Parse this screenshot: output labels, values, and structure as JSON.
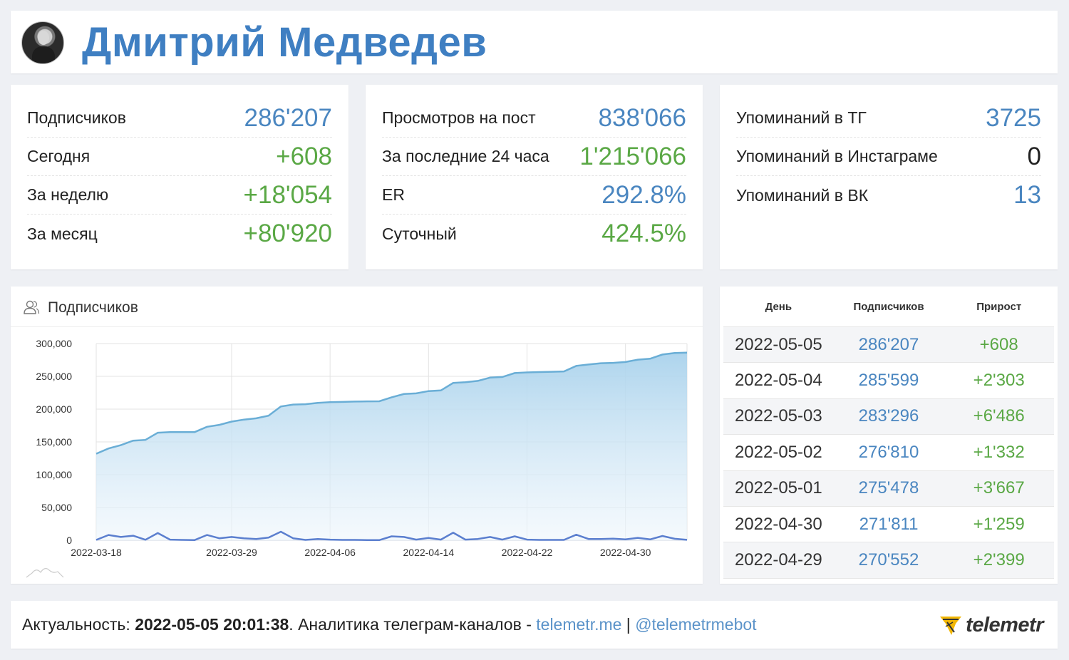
{
  "header": {
    "title": "Дмитрий Медведев"
  },
  "stats": {
    "subscribers": {
      "label": "Подписчиков",
      "value": "286'207",
      "rows": [
        {
          "label": "Сегодня",
          "value": "+608"
        },
        {
          "label": "За неделю",
          "value": "+18'054"
        },
        {
          "label": "За месяц",
          "value": "+80'920"
        }
      ]
    },
    "views": {
      "label": "Просмотров на пост",
      "value": "838'066",
      "rows": [
        {
          "label": "За последние 24 часа",
          "value": "1'215'066"
        },
        {
          "label": "ER",
          "value": "292.8%"
        },
        {
          "label": "Суточный",
          "value": "424.5%"
        }
      ]
    },
    "mentions": {
      "rows": [
        {
          "label": "Упоминаний в ТГ",
          "value": "3725"
        },
        {
          "label": "Упоминаний в Инстаграме",
          "value": "0"
        },
        {
          "label": "Упоминаний в ВК",
          "value": "13"
        }
      ]
    }
  },
  "chart_panel": {
    "title": "Подписчиков"
  },
  "chart_data": {
    "type": "area",
    "ylim": [
      0,
      300000
    ],
    "y_ticks": [
      "0",
      "50,000",
      "100,000",
      "150,000",
      "200,000",
      "250,000",
      "300,000"
    ],
    "x_tick_labels": [
      "2022-03-18",
      "2022-03-29",
      "2022-04-06",
      "2022-04-14",
      "2022-04-22",
      "2022-04-30"
    ],
    "x_tick_indices": [
      0,
      11,
      19,
      27,
      35,
      43
    ],
    "grid": true,
    "colors": {
      "subscribers": "#6aaed6",
      "growth": "#5b7fcf"
    },
    "series": [
      {
        "values": [
          132000,
          140000,
          145000,
          152000,
          153000,
          164000,
          165000,
          165000,
          165000,
          173000,
          176000,
          181000,
          184000,
          186000,
          190000,
          204000,
          207000,
          207500,
          209500,
          210500,
          211000,
          211500,
          211800,
          212000,
          218000,
          223000,
          224000,
          227500,
          228500,
          240000,
          241000,
          243000,
          248000,
          249000,
          255000,
          256000,
          256500,
          257000,
          257500,
          266000,
          268000,
          270000,
          270552,
          271811,
          275478,
          276810,
          283296,
          285599,
          286207
        ]
      },
      {
        "values": [
          500,
          8000,
          5000,
          7000,
          800,
          11000,
          1000,
          500,
          300,
          8000,
          3000,
          5000,
          3000,
          2000,
          4000,
          13000,
          3000,
          500,
          2000,
          1000,
          500,
          500,
          300,
          200,
          6000,
          5000,
          1000,
          3500,
          1000,
          11500,
          1000,
          2000,
          5000,
          1000,
          6000,
          1000,
          500,
          500,
          500,
          8500,
          2000,
          2000,
          2399,
          1259,
          3667,
          1332,
          6486,
          2303,
          608
        ]
      }
    ]
  },
  "table": {
    "columns": [
      "День",
      "Подписчиков",
      "Прирост"
    ],
    "rows": [
      {
        "day": "2022-05-05",
        "subs": "286'207",
        "growth": "+608"
      },
      {
        "day": "2022-05-04",
        "subs": "285'599",
        "growth": "+2'303"
      },
      {
        "day": "2022-05-03",
        "subs": "283'296",
        "growth": "+6'486"
      },
      {
        "day": "2022-05-02",
        "subs": "276'810",
        "growth": "+1'332"
      },
      {
        "day": "2022-05-01",
        "subs": "275'478",
        "growth": "+3'667"
      },
      {
        "day": "2022-04-30",
        "subs": "271'811",
        "growth": "+1'259"
      },
      {
        "day": "2022-04-29",
        "subs": "270'552",
        "growth": "+2'399"
      }
    ]
  },
  "footer": {
    "prefix": "Актуальность: ",
    "timestamp": "2022-05-05 20:01:38",
    "middle": ". Аналитика телеграм-каналов - ",
    "link1": "telemetr.me",
    "sep": " | ",
    "link2": "@telemetrmebot",
    "logo": "telemetr"
  }
}
